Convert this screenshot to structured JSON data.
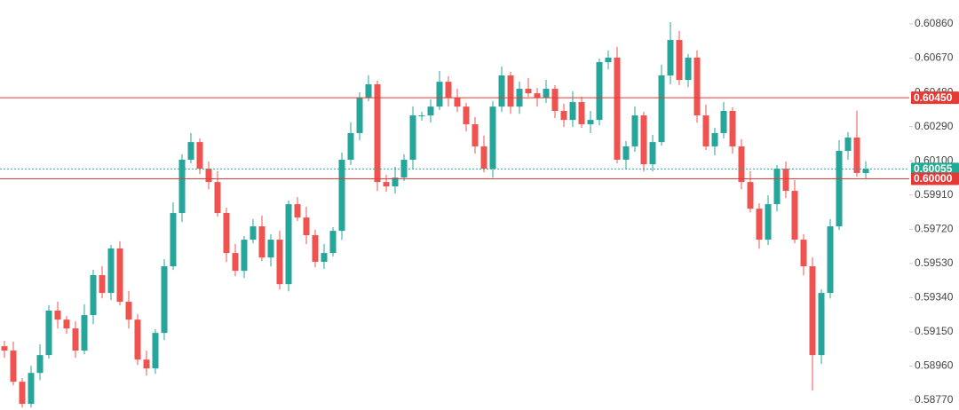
{
  "chart_data": {
    "type": "candlestick",
    "open": [
      0.5907,
      0.59046,
      0.58873,
      0.5875,
      0.58922,
      0.59021,
      0.59268,
      0.59218,
      0.59169,
      0.59046,
      0.59243,
      0.59465,
      0.59366,
      0.59613,
      0.59317,
      0.59218,
      0.58996,
      0.58947,
      0.59144,
      0.59514,
      0.5981,
      0.60106,
      0.60204,
      0.60056,
      0.59982,
      0.5981,
      0.59588,
      0.59489,
      0.59662,
      0.59736,
      0.59563,
      0.59662,
      0.59415,
      0.59859,
      0.59785,
      0.59687,
      0.59539,
      0.59588,
      0.59711,
      0.60106,
      0.60254,
      0.60451,
      0.60525,
      0.59982,
      0.59958,
      0.60007,
      0.60106,
      0.60352,
      0.60352,
      0.60401,
      0.60539,
      0.60451,
      0.60401,
      0.60303,
      0.6018,
      0.60056,
      0.60401,
      0.60574,
      0.60401,
      0.605,
      0.60475,
      0.60451,
      0.605,
      0.60377,
      0.60327,
      0.60426,
      0.60303,
      0.60327,
      0.60648,
      0.60673,
      0.60106,
      0.6018,
      0.60352,
      0.60081,
      0.60204,
      0.60574,
      0.60771,
      0.60549,
      0.60673,
      0.60352,
      0.6018,
      0.60254,
      0.60377,
      0.6018,
      0.59982,
      0.59834,
      0.59662,
      0.59859,
      0.60056,
      0.59933,
      0.59662,
      0.59514,
      0.59021,
      0.59366,
      0.59736,
      0.60155,
      0.60229,
      0.60032
    ],
    "high": [
      0.591,
      0.59096,
      0.58893,
      0.58962,
      0.59081,
      0.59298,
      0.59318,
      0.59238,
      0.59209,
      0.59303,
      0.59495,
      0.59515,
      0.59633,
      0.59653,
      0.59377,
      0.59248,
      0.59046,
      0.59164,
      0.59554,
      0.5987,
      0.60136,
      0.60254,
      0.60224,
      0.60096,
      0.60042,
      0.5984,
      0.59638,
      0.59682,
      0.59776,
      0.59796,
      0.59692,
      0.59712,
      0.59879,
      0.59899,
      0.59845,
      0.59717,
      0.59638,
      0.59731,
      0.60146,
      0.60314,
      0.60481,
      0.60575,
      0.60545,
      0.60022,
      0.60067,
      0.60136,
      0.60402,
      0.60372,
      0.60441,
      0.60599,
      0.60569,
      0.60501,
      0.60421,
      0.60343,
      0.6024,
      0.60431,
      0.60624,
      0.60594,
      0.6054,
      0.6056,
      0.60505,
      0.6055,
      0.6052,
      0.60417,
      0.60486,
      0.60456,
      0.60377,
      0.60668,
      0.60713,
      0.60733,
      0.6021,
      0.60402,
      0.60372,
      0.60244,
      0.60634,
      0.6087,
      0.60821,
      0.60693,
      0.60713,
      0.60412,
      0.60284,
      0.60427,
      0.60397,
      0.6022,
      0.60042,
      0.59864,
      0.59909,
      0.60076,
      0.60096,
      0.59993,
      0.59692,
      0.59564,
      0.59386,
      0.59776,
      0.60215,
      0.60259,
      0.60379,
      0.60097
    ],
    "low": [
      0.59006,
      0.58853,
      0.5873,
      0.5873,
      0.58882,
      0.59001,
      0.59168,
      0.59139,
      0.59006,
      0.59026,
      0.59193,
      0.59336,
      0.59326,
      0.59297,
      0.59168,
      0.58966,
      0.58907,
      0.58917,
      0.59104,
      0.59494,
      0.5976,
      0.60086,
      0.60026,
      0.59942,
      0.5979,
      0.59538,
      0.59459,
      0.59449,
      0.59642,
      0.59543,
      0.59513,
      0.59385,
      0.59375,
      0.59765,
      0.59637,
      0.59509,
      0.59499,
      0.59568,
      0.59661,
      0.60076,
      0.60214,
      0.60431,
      0.59932,
      0.59928,
      0.59918,
      0.59987,
      0.60056,
      0.60322,
      0.60312,
      0.60381,
      0.60401,
      0.60371,
      0.60263,
      0.6014,
      0.60036,
      0.60006,
      0.60371,
      0.60361,
      0.60361,
      0.60455,
      0.60401,
      0.60421,
      0.60337,
      0.60287,
      0.60287,
      0.60283,
      0.60253,
      0.60297,
      0.60608,
      0.60086,
      0.60056,
      0.6015,
      0.60041,
      0.60041,
      0.60184,
      0.60524,
      0.60519,
      0.60509,
      0.60312,
      0.6016,
      0.6013,
      0.60224,
      0.6014,
      0.59942,
      0.59814,
      0.59612,
      0.59632,
      0.59819,
      0.59893,
      0.59642,
      0.59464,
      0.58824,
      0.58971,
      0.59336,
      0.59716,
      0.60105,
      0.60012,
      0.60002
    ],
    "close": [
      0.59046,
      0.58873,
      0.5875,
      0.58922,
      0.59021,
      0.59268,
      0.59218,
      0.59169,
      0.59046,
      0.59243,
      0.59465,
      0.59366,
      0.59613,
      0.59317,
      0.59218,
      0.58996,
      0.58947,
      0.59144,
      0.59514,
      0.5981,
      0.60106,
      0.60204,
      0.60056,
      0.59982,
      0.5981,
      0.59588,
      0.59489,
      0.59662,
      0.59736,
      0.59563,
      0.59662,
      0.59415,
      0.59859,
      0.59785,
      0.59687,
      0.59539,
      0.59588,
      0.59711,
      0.60106,
      0.60254,
      0.60451,
      0.60525,
      0.59982,
      0.59958,
      0.60007,
      0.60106,
      0.60352,
      0.60352,
      0.60401,
      0.60539,
      0.60451,
      0.60401,
      0.60303,
      0.6018,
      0.60056,
      0.60401,
      0.60574,
      0.60401,
      0.605,
      0.60475,
      0.60451,
      0.605,
      0.60377,
      0.60327,
      0.60426,
      0.60303,
      0.60327,
      0.60648,
      0.60673,
      0.60106,
      0.6018,
      0.60352,
      0.60081,
      0.60204,
      0.60574,
      0.60771,
      0.60549,
      0.60673,
      0.60352,
      0.6018,
      0.60254,
      0.60377,
      0.6018,
      0.59982,
      0.59834,
      0.59662,
      0.59859,
      0.60056,
      0.59933,
      0.59662,
      0.59514,
      0.59021,
      0.59366,
      0.59736,
      0.60155,
      0.60229,
      0.60032,
      0.60055
    ],
    "up_color": "#26a69a",
    "down_color": "#ef5350",
    "ylim": [
      0.58716,
      0.60993
    ],
    "yticks": [
      {
        "value": 0.6086,
        "label": "0.60860"
      },
      {
        "value": 0.6067,
        "label": "0.60670"
      },
      {
        "value": 0.6048,
        "label": "0.60480"
      },
      {
        "value": 0.6029,
        "label": "0.60290"
      },
      {
        "value": 0.601,
        "label": "0.60100"
      },
      {
        "value": 0.5991,
        "label": "0.59910"
      },
      {
        "value": 0.5972,
        "label": "0.59720"
      },
      {
        "value": 0.5953,
        "label": "0.59530"
      },
      {
        "value": 0.5934,
        "label": "0.59340"
      },
      {
        "value": 0.5915,
        "label": "0.59150"
      },
      {
        "value": 0.5896,
        "label": "0.58960"
      },
      {
        "value": 0.5877,
        "label": "0.58770"
      }
    ],
    "hlines": [
      {
        "value": 0.6045,
        "label": "0.60450",
        "color": "#e53935",
        "style": "solid"
      },
      {
        "value": 0.60055,
        "label": "0.60055",
        "color": "#22ab94",
        "style": "dotted"
      },
      {
        "value": 0.6,
        "label": "0.60000",
        "color": "#e53935",
        "style": "solid"
      }
    ]
  }
}
